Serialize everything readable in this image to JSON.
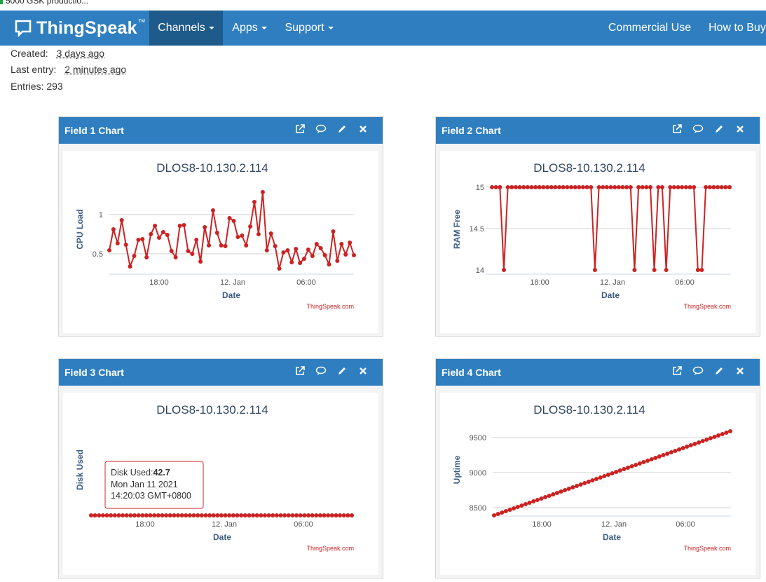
{
  "browser_tab": {
    "title": "5000 GSK productio..."
  },
  "navbar": {
    "brand": "ThingSpeak",
    "brand_tm": "™",
    "items": [
      {
        "label": "Channels",
        "dropdown": true,
        "active": true
      },
      {
        "label": "Apps",
        "dropdown": true,
        "active": false
      },
      {
        "label": "Support",
        "dropdown": true,
        "active": false
      }
    ],
    "right_items": [
      {
        "label": "Commercial Use"
      },
      {
        "label": "How to Buy"
      }
    ]
  },
  "channel_meta": {
    "created_label": "Created:",
    "created_value": "3 days ago",
    "last_entry_label": "Last entry:",
    "last_entry_value": "2 minutes ago",
    "entries_label": "Entries:",
    "entries_value": "293"
  },
  "colors": {
    "nav": "#2f7fc0",
    "nav_active": "#1e5a8a",
    "series": "#cc2222",
    "axis_title": "#3a5b86"
  },
  "panels": [
    {
      "title": "Field 1 Chart",
      "icons": [
        "external-link-icon",
        "comment-icon",
        "pencil-icon",
        "close-icon"
      ]
    },
    {
      "title": "Field 2 Chart",
      "icons": [
        "external-link-icon",
        "comment-icon",
        "pencil-icon",
        "close-icon"
      ]
    },
    {
      "title": "Field 3 Chart",
      "icons": [
        "external-link-icon",
        "comment-icon",
        "pencil-icon",
        "close-icon"
      ]
    },
    {
      "title": "Field 4 Chart",
      "icons": [
        "external-link-icon",
        "comment-icon",
        "pencil-icon",
        "close-icon"
      ]
    }
  ],
  "chart_data": [
    {
      "type": "line",
      "title": "DLOS8-10.130.2.114",
      "xlabel": "Date",
      "ylabel": "CPU Load",
      "credit": "ThingSpeak.com",
      "x_ticks": [
        "18:00",
        "12. Jan",
        "06:00"
      ],
      "y_ticks": [
        0.5,
        1
      ],
      "ylim": [
        0.28,
        1.43
      ],
      "grid": true,
      "series": [
        {
          "values": [
            0.55,
            0.85,
            0.65,
            0.98,
            0.63,
            0.32,
            0.47,
            0.7,
            0.71,
            0.45,
            0.78,
            0.9,
            0.73,
            0.81,
            0.77,
            0.54,
            0.45,
            0.9,
            0.91,
            0.54,
            0.5,
            0.7,
            0.39,
            0.88,
            0.62,
            1.12,
            0.8,
            0.62,
            0.61,
            1.01,
            0.97,
            0.74,
            0.76,
            0.62,
            0.89,
            1.24,
            0.78,
            1.38,
            0.55,
            0.79,
            0.61,
            0.29,
            0.52,
            0.55,
            0.38,
            0.57,
            0.37,
            0.43,
            0.56,
            0.47,
            0.64,
            0.58,
            0.48,
            0.35,
            0.82,
            0.4,
            0.64,
            0.49,
            0.66,
            0.48
          ]
        }
      ]
    },
    {
      "type": "line",
      "title": "DLOS8-10.130.2.114",
      "xlabel": "Date",
      "ylabel": "RAM Free",
      "credit": "ThingSpeak.com",
      "x_ticks": [
        "18:00",
        "12. Jan",
        "06:00"
      ],
      "y_ticks": [
        "14",
        "14.5",
        "15"
      ],
      "ylim": [
        14,
        15
      ],
      "grid": true,
      "series": [
        {
          "values": [
            15,
            15,
            15,
            14,
            15,
            15,
            15,
            15,
            15,
            15,
            15,
            15,
            15,
            15,
            15,
            15,
            15,
            15,
            15,
            15,
            15,
            15,
            15,
            15,
            15,
            15,
            14,
            15,
            15,
            15,
            15,
            15,
            15,
            15,
            15,
            15,
            14,
            15,
            15,
            15,
            15,
            14,
            15,
            15,
            14,
            15,
            15,
            15,
            15,
            15,
            15,
            15,
            14,
            14,
            15,
            15,
            15,
            15,
            15,
            15,
            15
          ]
        }
      ]
    },
    {
      "type": "line",
      "title": "DLOS8-10.130.2.114",
      "xlabel": "Date",
      "ylabel": "Disk Used",
      "credit": "ThingSpeak.com",
      "x_ticks": [
        "18:00",
        "12. Jan",
        "06:00"
      ],
      "y_ticks": [],
      "grid": false,
      "series": [
        {
          "values": [
            42.7,
            42.7,
            42.7,
            42.7,
            42.7,
            42.7,
            42.7,
            42.7,
            42.7,
            42.7,
            42.7,
            42.7,
            42.7,
            42.7,
            42.7,
            42.7,
            42.7,
            42.7,
            42.7,
            42.7,
            42.7,
            42.7,
            42.7,
            42.7,
            42.7,
            42.7,
            42.7,
            42.7,
            42.7,
            42.7,
            42.7,
            42.7,
            42.7,
            42.7,
            42.7,
            42.7,
            42.7,
            42.7,
            42.7,
            42.7,
            42.7,
            42.7,
            42.7,
            42.7,
            42.7,
            42.7,
            42.7,
            42.7,
            42.7,
            42.7,
            42.7,
            42.7,
            42.7,
            42.7,
            42.7,
            42.7,
            42.7,
            42.7,
            42.7,
            42.7,
            42.7,
            42.7,
            42.7,
            42.7,
            42.7,
            42.7,
            42.7
          ]
        }
      ],
      "tooltip": {
        "label": "Disk Used:",
        "value": "42.7",
        "line2": "Mon Jan 11 2021",
        "line3": "14:20:03 GMT+0800"
      }
    },
    {
      "type": "line",
      "title": "DLOS8-10.130.2.114",
      "xlabel": "Date",
      "ylabel": "Uptime",
      "credit": "ThingSpeak.com",
      "x_ticks": [
        "18:00",
        "12. Jan",
        "06:00"
      ],
      "y_ticks": [
        8500,
        9000,
        9500
      ],
      "ylim": [
        8450,
        9710
      ],
      "grid": true,
      "series": [
        {
          "values": [
            8440,
            8460,
            8480,
            8500,
            8520,
            8540,
            8560,
            8580,
            8600,
            8620,
            8640,
            8660,
            8680,
            8700,
            8720,
            8740,
            8760,
            8780,
            8800,
            8820,
            8840,
            8860,
            8880,
            8900,
            8920,
            8940,
            8960,
            8980,
            9000,
            9020,
            9040,
            9060,
            9080,
            9100,
            9120,
            9140,
            9160,
            9180,
            9200,
            9220,
            9240,
            9260,
            9280,
            9300,
            9320,
            9340,
            9360,
            9380,
            9400,
            9420,
            9440,
            9460,
            9480,
            9500,
            9520,
            9540,
            9560,
            9580,
            9600,
            9620,
            9640
          ]
        }
      ]
    }
  ]
}
